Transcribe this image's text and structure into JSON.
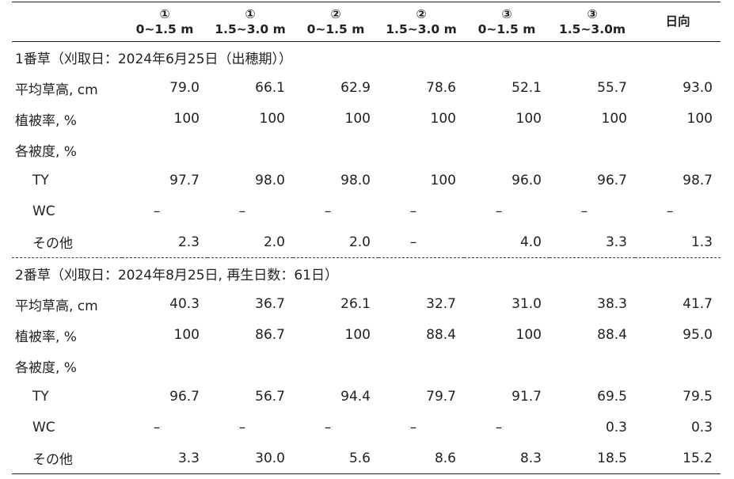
{
  "table": {
    "header": [
      [
        "①",
        "0~1.5 m"
      ],
      [
        "①",
        "1.5~3.0 m"
      ],
      [
        "②",
        "0~1.5 m"
      ],
      [
        "②",
        "1.5~3.0 m"
      ],
      [
        "③",
        "0~1.5 m"
      ],
      [
        "③",
        "1.5~3.0m"
      ],
      [
        "日向"
      ]
    ],
    "sections": [
      {
        "title": "1番草（刈取日：2024年6月25日（出穂期））",
        "rows": [
          {
            "label": "平均草高, cm",
            "values": [
              "79.0",
              "66.1",
              "62.9",
              "78.6",
              "52.1",
              "55.7",
              "93.0"
            ]
          },
          {
            "label": "植被率, %",
            "values": [
              "100",
              "100",
              "100",
              "100",
              "100",
              "100",
              "100"
            ]
          },
          {
            "label": "各被度, %",
            "children": [
              {
                "label": "TY",
                "values": [
                  "97.7",
                  "98.0",
                  "98.0",
                  "100",
                  "96.0",
                  "96.7",
                  "98.7"
                ]
              },
              {
                "label": "WC",
                "values": [
                  "–",
                  "–",
                  "–",
                  "–",
                  "–",
                  "–",
                  "–"
                ]
              },
              {
                "label": "その他",
                "values": [
                  "2.3",
                  "2.0",
                  "2.0",
                  "–",
                  "4.0",
                  "3.3",
                  "1.3"
                ]
              }
            ]
          }
        ]
      },
      {
        "title": "2番草（刈取日：2024年8月25日, 再生日数：61日）",
        "rows": [
          {
            "label": "平均草高, cm",
            "values": [
              "40.3",
              "36.7",
              "26.1",
              "32.7",
              "31.0",
              "38.3",
              "41.7"
            ]
          },
          {
            "label": "植被率, %",
            "values": [
              "100",
              "86.7",
              "100",
              "88.4",
              "100",
              "88.4",
              "95.0"
            ]
          },
          {
            "label": "各被度, %",
            "children": [
              {
                "label": "TY",
                "values": [
                  "96.7",
                  "56.7",
                  "94.4",
                  "79.7",
                  "91.7",
                  "69.5",
                  "79.5"
                ]
              },
              {
                "label": "WC",
                "values": [
                  "–",
                  "–",
                  "–",
                  "–",
                  "–",
                  "0.3",
                  "0.3"
                ]
              },
              {
                "label": "その他",
                "values": [
                  "3.3",
                  "30.0",
                  "5.6",
                  "8.6",
                  "8.3",
                  "18.5",
                  "15.2"
                ]
              }
            ]
          }
        ]
      }
    ]
  }
}
